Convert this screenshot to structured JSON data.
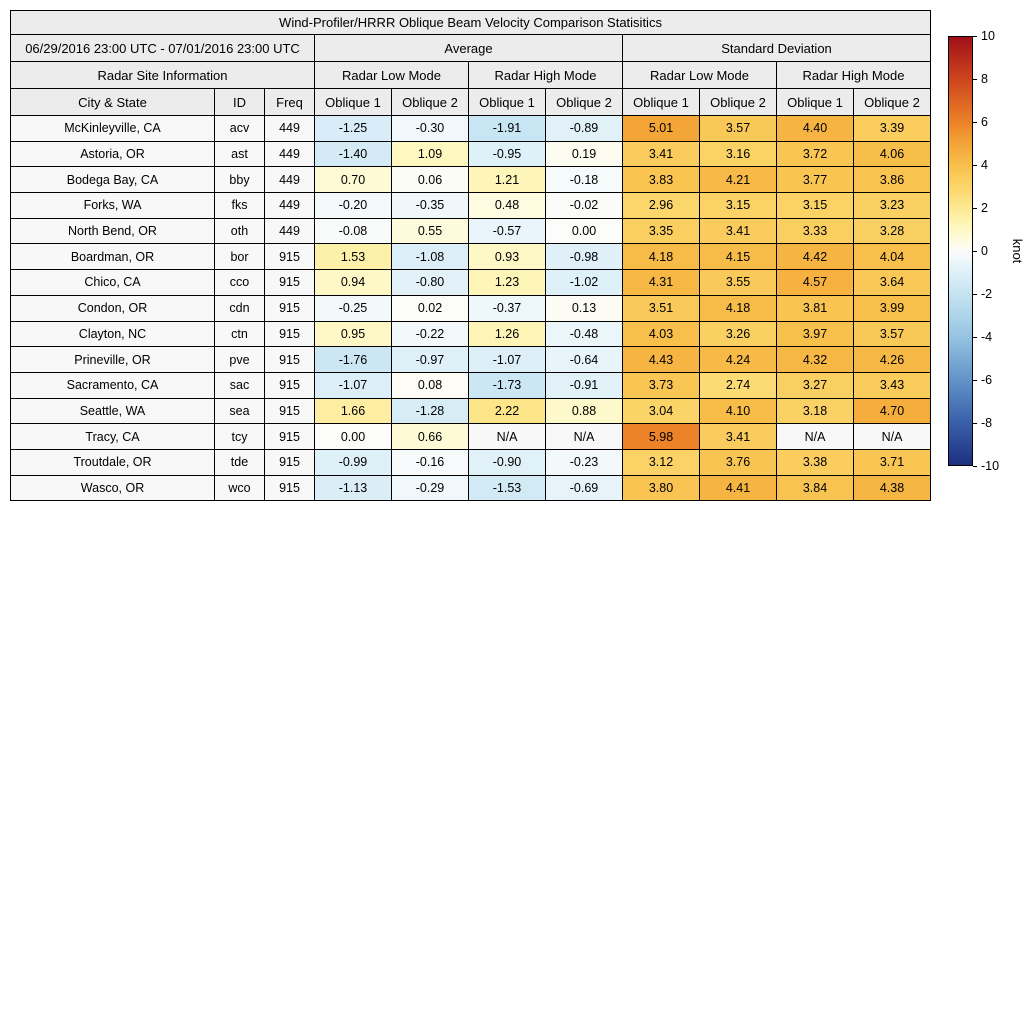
{
  "title": "Wind-Profiler/HRRR Oblique Beam Velocity Comparison Statisitics",
  "header": {
    "date_range": "06/29/2016 23:00 UTC - 07/01/2016 23:00 UTC",
    "group_average": "Average",
    "group_std": "Standard Deviation",
    "site_info": "Radar Site Information",
    "low_mode_avg": "Radar Low Mode",
    "high_mode_avg": "Radar High Mode",
    "low_mode_std": "Radar Low Mode",
    "high_mode_std": "Radar High Mode",
    "col_city": "City & State",
    "col_id": "ID",
    "col_freq": "Freq",
    "oblique_labels": [
      "Oblique 1",
      "Oblique 2",
      "Oblique 1",
      "Oblique 2",
      "Oblique 1",
      "Oblique 2",
      "Oblique 1",
      "Oblique 2"
    ]
  },
  "chart_data": {
    "type": "heatmap",
    "title": "Wind-Profiler/HRRR Oblique Beam Velocity Comparison Statisitics",
    "columns": [
      "City & State",
      "ID",
      "Freq",
      "Avg Low Oblique 1",
      "Avg Low Oblique 2",
      "Avg High Oblique 1",
      "Avg High Oblique 2",
      "Std Low Oblique 1",
      "Std Low Oblique 2",
      "Std High Oblique 1",
      "Std High Oblique 2"
    ],
    "rows": [
      {
        "city": "McKinleyville, CA",
        "id": "acv",
        "freq": "449",
        "values": [
          "-1.25",
          "-0.30",
          "-1.91",
          "-0.89",
          "5.01",
          "3.57",
          "4.40",
          "3.39"
        ]
      },
      {
        "city": "Astoria, OR",
        "id": "ast",
        "freq": "449",
        "values": [
          "-1.40",
          "1.09",
          "-0.95",
          "0.19",
          "3.41",
          "3.16",
          "3.72",
          "4.06"
        ]
      },
      {
        "city": "Bodega Bay, CA",
        "id": "bby",
        "freq": "449",
        "values": [
          "0.70",
          "0.06",
          "1.21",
          "-0.18",
          "3.83",
          "4.21",
          "3.77",
          "3.86"
        ]
      },
      {
        "city": "Forks, WA",
        "id": "fks",
        "freq": "449",
        "values": [
          "-0.20",
          "-0.35",
          "0.48",
          "-0.02",
          "2.96",
          "3.15",
          "3.15",
          "3.23"
        ]
      },
      {
        "city": "North Bend, OR",
        "id": "oth",
        "freq": "449",
        "values": [
          "-0.08",
          "0.55",
          "-0.57",
          "0.00",
          "3.35",
          "3.41",
          "3.33",
          "3.28"
        ]
      },
      {
        "city": "Boardman, OR",
        "id": "bor",
        "freq": "915",
        "values": [
          "1.53",
          "-1.08",
          "0.93",
          "-0.98",
          "4.18",
          "4.15",
          "4.42",
          "4.04"
        ]
      },
      {
        "city": "Chico, CA",
        "id": "cco",
        "freq": "915",
        "values": [
          "0.94",
          "-0.80",
          "1.23",
          "-1.02",
          "4.31",
          "3.55",
          "4.57",
          "3.64"
        ]
      },
      {
        "city": "Condon, OR",
        "id": "cdn",
        "freq": "915",
        "values": [
          "-0.25",
          "0.02",
          "-0.37",
          "0.13",
          "3.51",
          "4.18",
          "3.81",
          "3.99"
        ]
      },
      {
        "city": "Clayton, NC",
        "id": "ctn",
        "freq": "915",
        "values": [
          "0.95",
          "-0.22",
          "1.26",
          "-0.48",
          "4.03",
          "3.26",
          "3.97",
          "3.57"
        ]
      },
      {
        "city": "Prineville, OR",
        "id": "pve",
        "freq": "915",
        "values": [
          "-1.76",
          "-0.97",
          "-1.07",
          "-0.64",
          "4.43",
          "4.24",
          "4.32",
          "4.26"
        ]
      },
      {
        "city": "Sacramento, CA",
        "id": "sac",
        "freq": "915",
        "values": [
          "-1.07",
          "0.08",
          "-1.73",
          "-0.91",
          "3.73",
          "2.74",
          "3.27",
          "3.43"
        ]
      },
      {
        "city": "Seattle, WA",
        "id": "sea",
        "freq": "915",
        "values": [
          "1.66",
          "-1.28",
          "2.22",
          "0.88",
          "3.04",
          "4.10",
          "3.18",
          "4.70"
        ]
      },
      {
        "city": "Tracy, CA",
        "id": "tcy",
        "freq": "915",
        "values": [
          "0.00",
          "0.66",
          "N/A",
          "N/A",
          "5.98",
          "3.41",
          "N/A",
          "N/A"
        ]
      },
      {
        "city": "Troutdale, OR",
        "id": "tde",
        "freq": "915",
        "values": [
          "-0.99",
          "-0.16",
          "-0.90",
          "-0.23",
          "3.12",
          "3.76",
          "3.38",
          "3.71"
        ]
      },
      {
        "city": "Wasco, OR",
        "id": "wco",
        "freq": "915",
        "values": [
          "-1.13",
          "-0.29",
          "-1.53",
          "-0.69",
          "3.80",
          "4.41",
          "3.84",
          "4.38"
        ]
      }
    ],
    "color_scale": {
      "min": -10,
      "max": 10,
      "unit": "knot",
      "zero_color": "#fcfcfa",
      "max_color": "#a00f19",
      "min_color": "#1c2e80"
    }
  },
  "colorbar": {
    "label": "knot",
    "ticks": [
      "10",
      "8",
      "6",
      "4",
      "2",
      "0",
      "-2",
      "-4",
      "-6",
      "-8",
      "-10"
    ],
    "min": -10,
    "max": 10
  }
}
